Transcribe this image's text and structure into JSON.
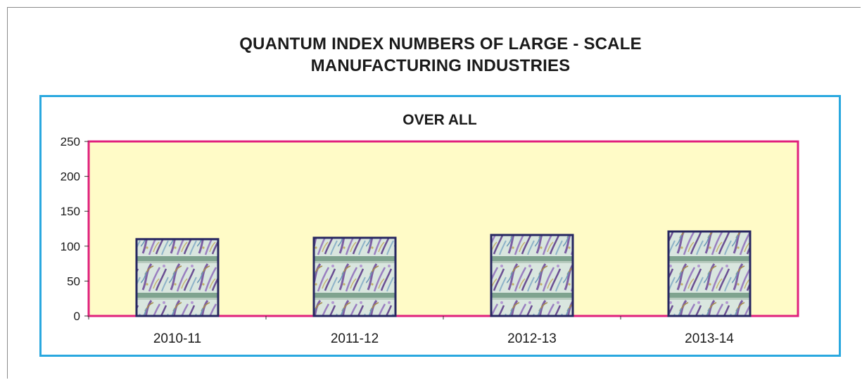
{
  "title_lines": [
    "QUANTUM INDEX NUMBERS OF LARGE - SCALE",
    "MANUFACTURING INDUSTRIES"
  ],
  "chart_data": {
    "type": "bar",
    "title": "OVER ALL",
    "categories": [
      "2010-11",
      "2011-12",
      "2012-13",
      "2013-14"
    ],
    "values": [
      110,
      112,
      116,
      121
    ],
    "xlabel": "",
    "ylabel": "",
    "ylim": [
      0,
      250
    ],
    "yticks": [
      0,
      50,
      100,
      150,
      200,
      250
    ],
    "grid": false,
    "legend": "none",
    "colors": {
      "plot_background": "#fffbc7",
      "plot_border": "#e0207c",
      "bar_border": "#262660",
      "frame_border": "#29a8df"
    }
  }
}
